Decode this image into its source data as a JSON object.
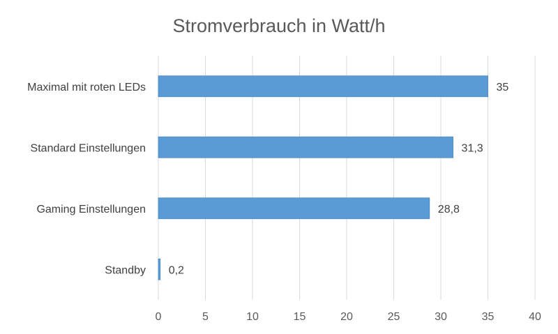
{
  "chart_data": {
    "type": "bar",
    "orientation": "horizontal",
    "title": "Stromverbrauch in Watt/h",
    "categories": [
      "Maximal mit roten LEDs",
      "Standard Einstellungen",
      "Gaming Einstellungen",
      "Standby"
    ],
    "values": [
      35,
      31.3,
      28.8,
      0.2
    ],
    "data_labels": [
      "35",
      "31,3",
      "28,8",
      "0,2"
    ],
    "xlim": [
      0,
      40
    ],
    "xticks": [
      0,
      5,
      10,
      15,
      20,
      25,
      30,
      35,
      40
    ],
    "xlabel": "",
    "ylabel": "",
    "grid": "vertical",
    "legend": "none",
    "bar_color": "#5b9bd5"
  }
}
